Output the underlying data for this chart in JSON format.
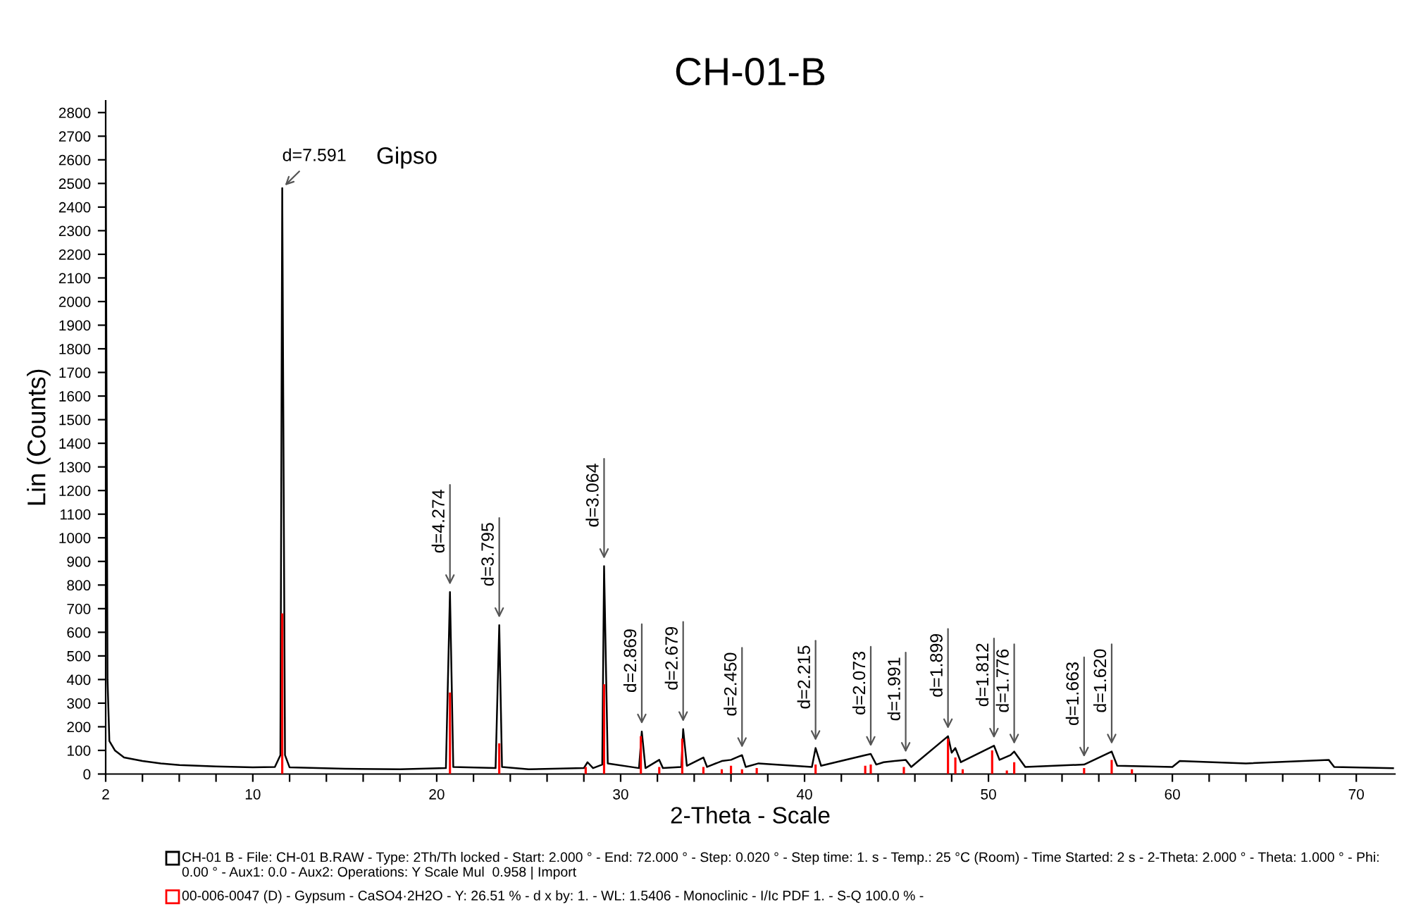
{
  "chart_data": {
    "type": "line",
    "title": "CH-01-B",
    "xlabel": "2-Theta - Scale",
    "ylabel": "Lin (Counts)",
    "xlim": [
      2,
      72.1
    ],
    "ylim": [
      0,
      2850
    ],
    "xticks": [
      2,
      {
        "value": 4,
        "label": null
      },
      {
        "value": 6,
        "label": null
      },
      {
        "value": 8,
        "label": null
      },
      10,
      {
        "value": 12,
        "label": null
      },
      {
        "value": 14,
        "label": null
      },
      {
        "value": 16,
        "label": null
      },
      {
        "value": 18,
        "label": null
      },
      20,
      {
        "value": 22,
        "label": null
      },
      {
        "value": 24,
        "label": null
      },
      {
        "value": 26,
        "label": null
      },
      {
        "value": 28,
        "label": null
      },
      30,
      {
        "value": 32,
        "label": null
      },
      {
        "value": 34,
        "label": null
      },
      {
        "value": 36,
        "label": null
      },
      {
        "value": 38,
        "label": null
      },
      40,
      {
        "value": 42,
        "label": null
      },
      {
        "value": 44,
        "label": null
      },
      {
        "value": 46,
        "label": null
      },
      {
        "value": 48,
        "label": null
      },
      50,
      {
        "value": 52,
        "label": null
      },
      {
        "value": 54,
        "label": null
      },
      {
        "value": 56,
        "label": null
      },
      {
        "value": 58,
        "label": null
      },
      60,
      {
        "value": 62,
        "label": null
      },
      {
        "value": 64,
        "label": null
      },
      {
        "value": 66,
        "label": null
      },
      {
        "value": 68,
        "label": null
      },
      70
    ],
    "yticks": [
      0,
      100,
      200,
      300,
      400,
      500,
      600,
      700,
      800,
      900,
      1000,
      1100,
      1200,
      1300,
      1400,
      1500,
      1600,
      1700,
      1800,
      1900,
      2000,
      2100,
      2200,
      2300,
      2400,
      2500,
      2600,
      2700,
      2800
    ],
    "grid": false,
    "legend": "bottom",
    "series": [
      {
        "name": "CH-01 B - File: CH-01 B.RAW - Type: 2Th/Th locked - Start: 2.000 ° - End: 72.000 ° - Step: 0.020 ° - Step time: 1. s - Temp.: 25 °C (Room) - Time Started: 2 s - 2-Theta: 2.000 ° - Theta: 1.000 ° - Phi: 0.00 ° - Aux1: 0.0 - Aux2: Operations: Y Scale Mul  0.958 | Import",
        "color": "#000000",
        "x": [
          2.0,
          2.1,
          2.2,
          2.5,
          3,
          4,
          5,
          6,
          8,
          10,
          11.2,
          11.5,
          11.6,
          11.75,
          12,
          15,
          18,
          20.5,
          20.72,
          20.9,
          23.2,
          23.4,
          23.55,
          25,
          28,
          28.2,
          28.5,
          29.0,
          29.1,
          29.3,
          31.0,
          31.15,
          31.35,
          32.1,
          32.3,
          33.3,
          33.4,
          33.6,
          34.5,
          34.7,
          35.5,
          36.0,
          36.6,
          36.8,
          37.5,
          40.4,
          40.6,
          40.9,
          43.3,
          43.6,
          43.9,
          44.3,
          45.5,
          45.8,
          47.8,
          48.0,
          48.2,
          48.5,
          50.3,
          50.6,
          51.2,
          51.4,
          52,
          55.2,
          56.7,
          57,
          60,
          60.4,
          64,
          68.5,
          68.8,
          72
        ],
        "values": [
          2700,
          400,
          140,
          100,
          70,
          55,
          45,
          38,
          32,
          28,
          30,
          80,
          2480,
          80,
          28,
          22,
          20,
          25,
          770,
          30,
          25,
          630,
          30,
          20,
          25,
          50,
          25,
          40,
          880,
          45,
          25,
          180,
          25,
          60,
          25,
          30,
          190,
          35,
          70,
          30,
          55,
          60,
          80,
          30,
          45,
          30,
          110,
          35,
          80,
          85,
          40,
          50,
          60,
          30,
          160,
          90,
          110,
          50,
          120,
          60,
          80,
          95,
          30,
          40,
          95,
          35,
          30,
          55,
          45,
          60,
          30,
          25
        ]
      },
      {
        "name": "00-006-0047 (D) - Gypsum - CaSO4·2H2O - Y: 26.51 % - d x by: 1. - WL: 1.5406 - Monoclinic - I/Ic PDF 1. - S-Q 100.0 % -",
        "type": "bar",
        "color": "#ff0000",
        "x": [
          11.6,
          20.72,
          23.4,
          28.1,
          29.1,
          31.1,
          32.1,
          33.35,
          34.5,
          35.5,
          36.0,
          36.6,
          37.4,
          40.6,
          43.3,
          43.6,
          45.4,
          47.8,
          48.2,
          48.6,
          50.2,
          51.0,
          51.4,
          55.2,
          56.7,
          57.8
        ],
        "values": [
          680,
          345,
          130,
          30,
          380,
          160,
          30,
          150,
          30,
          20,
          35,
          20,
          25,
          40,
          35,
          40,
          30,
          150,
          70,
          20,
          100,
          15,
          50,
          25,
          60,
          20
        ]
      }
    ],
    "annotations": [
      {
        "text": "d=7.591",
        "x": 11.6,
        "y": 2480
      },
      "Gipso",
      {
        "text": "d=4.274",
        "x": 20.72,
        "y": 770
      },
      {
        "text": "d=3.795",
        "x": 23.4,
        "y": 630
      },
      {
        "text": "d=3.064",
        "x": 29.1,
        "y": 880
      },
      {
        "text": "d=2.869",
        "x": 31.15,
        "y": 180
      },
      {
        "text": "d=2.679",
        "x": 33.4,
        "y": 190
      },
      {
        "text": "d=2.450",
        "x": 36.6,
        "y": 80
      },
      {
        "text": "d=2.215",
        "x": 40.6,
        "y": 110
      },
      {
        "text": "d=2.073",
        "x": 43.6,
        "y": 85
      },
      {
        "text": "d=1.991",
        "x": 45.5,
        "y": 60
      },
      {
        "text": "d=1.899",
        "x": 47.8,
        "y": 160
      },
      {
        "text": "d=1.812",
        "x": 50.3,
        "y": 120
      },
      {
        "text": "d=1.776",
        "x": 51.4,
        "y": 95
      },
      {
        "text": "d=1.663",
        "x": 55.2,
        "y": 40
      },
      {
        "text": "d=1.620",
        "x": 56.7,
        "y": 95
      }
    ]
  }
}
